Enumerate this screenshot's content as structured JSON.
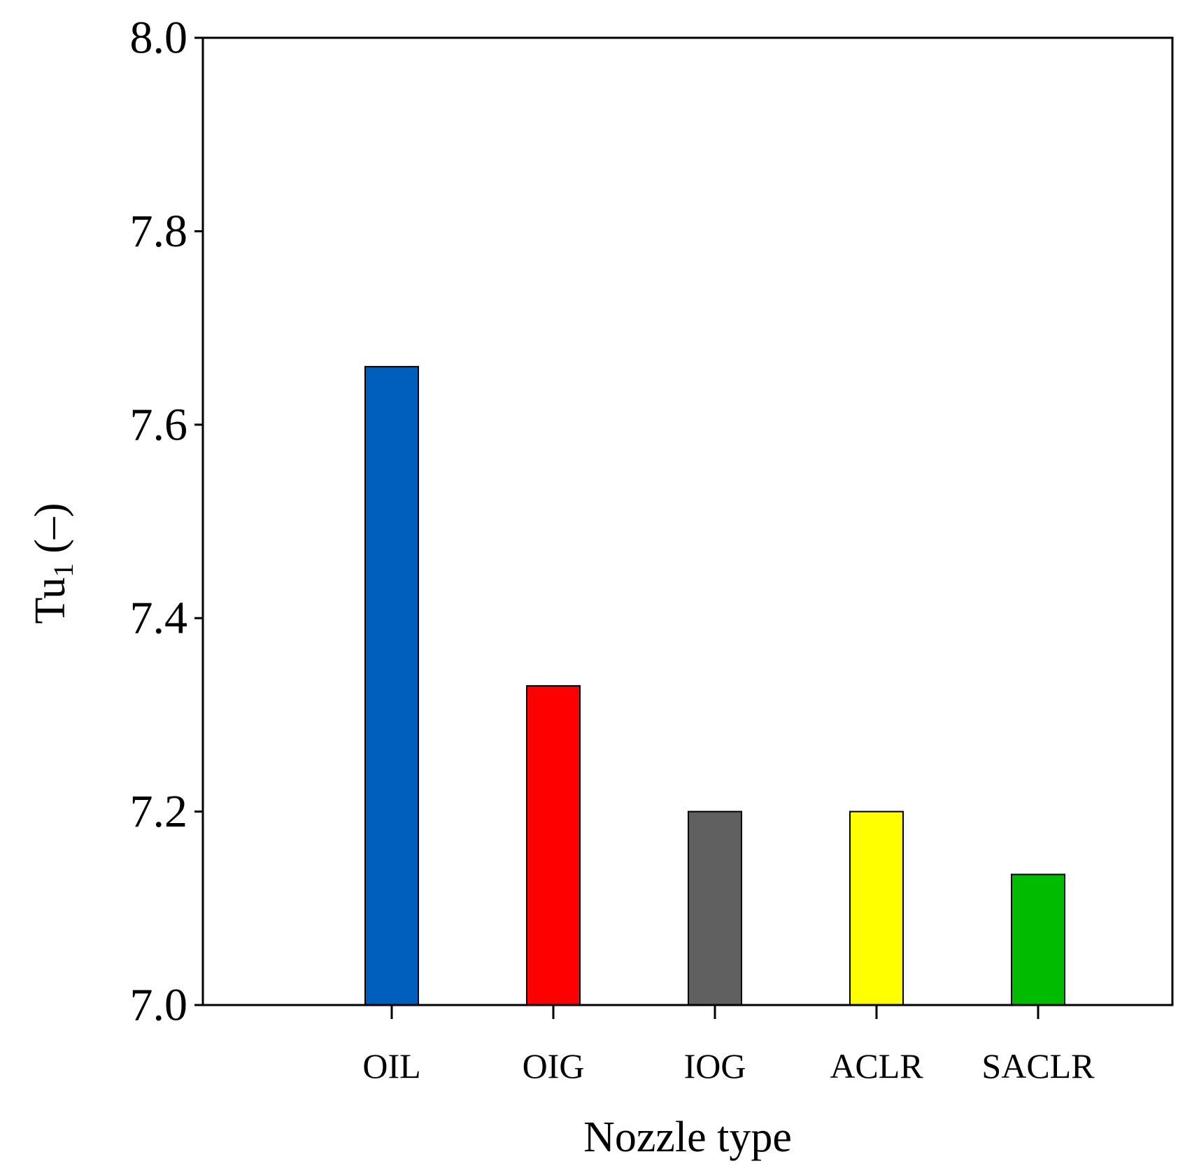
{
  "chart_data": {
    "type": "bar",
    "title": "",
    "xlabel": "Nozzle type",
    "ylabel": {
      "main": "Tu",
      "subscript": "1",
      "unit": "(–)"
    },
    "ylim": [
      7.0,
      8.0
    ],
    "yticks": [
      "7.0",
      "7.2",
      "7.4",
      "7.6",
      "7.8",
      "8.0"
    ],
    "categories": [
      "OIL",
      "OIG",
      "IOG",
      "ACLR",
      "SACLR"
    ],
    "values": [
      7.66,
      7.33,
      7.2,
      7.2,
      7.135
    ],
    "colors": [
      "#005fbd",
      "#ff0000",
      "#606060",
      "#ffff00",
      "#00bb00"
    ],
    "grid": false,
    "legend": "none"
  }
}
